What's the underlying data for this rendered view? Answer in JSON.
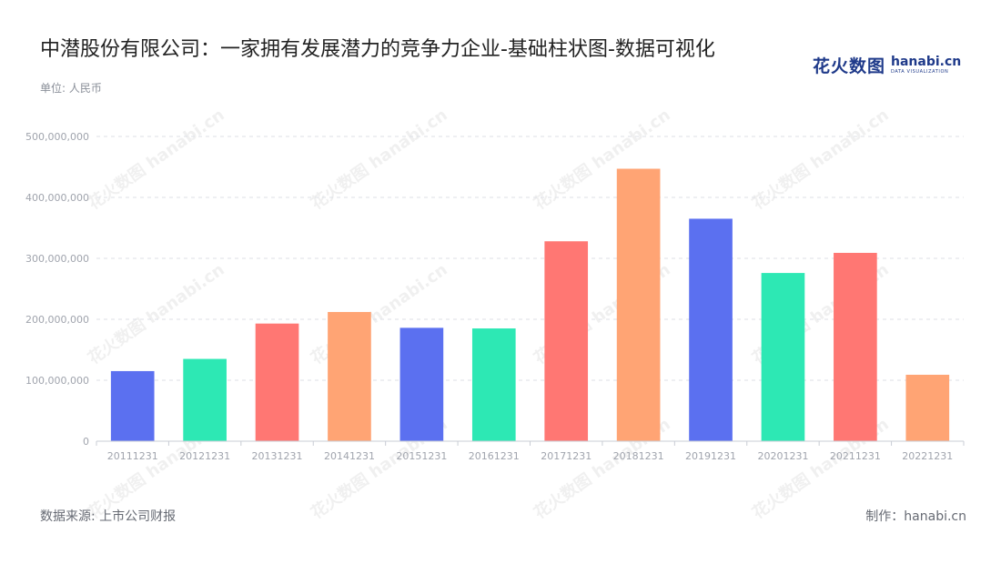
{
  "header": {
    "title": "中潜股份有限公司：一家拥有发展潜力的竞争力企业-基础柱状图-数据可视化",
    "unit": "单位: 人民币"
  },
  "logo": {
    "cn": "花火数图",
    "en": "hanabi.cn",
    "tagline": "DATA VISUALIZATION",
    "watermark": "花火数图 hanabi.cn"
  },
  "footer": {
    "source": "数据来源: 上市公司财报",
    "made_by": "制作：hanabi.cn"
  },
  "chart_data": {
    "type": "bar",
    "title": "中潜股份有限公司：一家拥有发展潜力的竞争力企业-基础柱状图-数据可视化",
    "categories": [
      "20111231",
      "20121231",
      "20131231",
      "20141231",
      "20151231",
      "20161231",
      "20171231",
      "20181231",
      "20191231",
      "20201231",
      "20211231",
      "20221231"
    ],
    "values": [
      115000000,
      135000000,
      193000000,
      212000000,
      186000000,
      185000000,
      328000000,
      447000000,
      365000000,
      276000000,
      309000000,
      109000000
    ],
    "bar_colors": [
      "#5b70f0",
      "#2de8b4",
      "#ff7773",
      "#ffa474",
      "#5b70f0",
      "#2de8b4",
      "#ff7773",
      "#ffa474",
      "#5b70f0",
      "#2de8b4",
      "#ff7773",
      "#ffa474"
    ],
    "y_ticks": [
      0,
      100000000,
      200000000,
      300000000,
      400000000,
      500000000
    ],
    "y_tick_labels": [
      "0",
      "100,000,000",
      "200,000,000",
      "300,000,000",
      "400,000,000",
      "500,000,000"
    ],
    "ylim": [
      0,
      500000000
    ],
    "xlabel": "",
    "ylabel": "",
    "grid": true,
    "grid_color": "#dcdfe6",
    "axis_color": "#c8ccd4",
    "tick_label_color": "#a0a4ad"
  }
}
